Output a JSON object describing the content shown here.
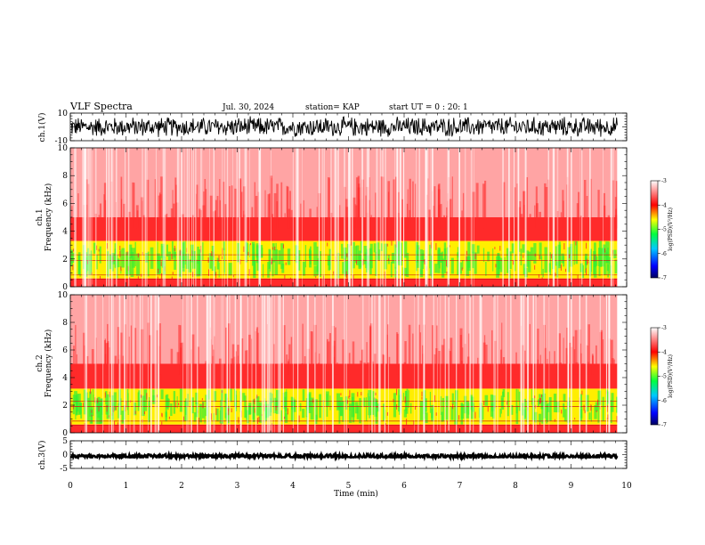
{
  "header": {
    "title": "VLF Spectra",
    "date": "Jul. 30, 2024",
    "station": "station= KAP",
    "start": "start UT =  0 : 20: 1"
  },
  "chart_data": [
    {
      "type": "line",
      "panel": "ch1-waveform",
      "ylabel": "ch.1(V)",
      "ylim": [
        -10,
        10
      ],
      "yticks": [
        "10",
        "-10"
      ],
      "xlim": [
        0,
        10
      ],
      "data_end_min": 9.83,
      "approx_range_V": [
        -8,
        8
      ],
      "color": "#000000"
    },
    {
      "type": "heatmap",
      "panel": "ch1-spectrogram",
      "ylabel": "ch.1\nFrequency (kHz)",
      "ylim": [
        0,
        10
      ],
      "yticks": [
        "0",
        "2",
        "4",
        "6",
        "8",
        "10"
      ],
      "xlim": [
        0,
        10
      ],
      "bands": [
        {
          "from_kHz": 0,
          "to_kHz": 0.6,
          "level": "red"
        },
        {
          "from_kHz": 0.6,
          "to_kHz": 3.3,
          "level": "green-yellow"
        },
        {
          "from_kHz": 3.3,
          "to_kHz": 5,
          "level": "red"
        },
        {
          "from_kHz": 5,
          "to_kHz": 10,
          "level": "light-red"
        }
      ],
      "colorbar": {
        "label": "log(PSD)(V²/Hz)",
        "ticks": [
          "-3",
          "-4",
          "-5",
          "-6",
          "-7"
        ],
        "range": [
          -7,
          -3
        ]
      }
    },
    {
      "type": "heatmap",
      "panel": "ch2-spectrogram",
      "ylabel": "ch.2\nFrequency (kHz)",
      "ylim": [
        0,
        10
      ],
      "yticks": [
        "0",
        "2",
        "4",
        "6",
        "8",
        "10"
      ],
      "xlim": [
        0,
        10
      ],
      "bands": [
        {
          "from_kHz": 0,
          "to_kHz": 0.6,
          "level": "red"
        },
        {
          "from_kHz": 0.6,
          "to_kHz": 3.2,
          "level": "green-yellow"
        },
        {
          "from_kHz": 3.2,
          "to_kHz": 5,
          "level": "red"
        },
        {
          "from_kHz": 5,
          "to_kHz": 10,
          "level": "light-red"
        }
      ],
      "colorbar": {
        "label": "log(PSD)(V²/Hz)",
        "ticks": [
          "-3",
          "-4",
          "-5",
          "-6",
          "-7"
        ],
        "range": [
          -7,
          -3
        ]
      }
    },
    {
      "type": "line",
      "panel": "ch3-waveform",
      "ylabel": "ch.3(V)",
      "ylim": [
        -5,
        5
      ],
      "yticks": [
        "5",
        "0",
        "-5"
      ],
      "xlim": [
        0,
        10
      ],
      "data_end_min": 9.83,
      "approx_range_V": [
        -1.1,
        0.1
      ],
      "color": "#000000"
    }
  ],
  "x_axis": {
    "label": "Time (min)",
    "ticks": [
      "0",
      "1",
      "2",
      "3",
      "4",
      "5",
      "6",
      "7",
      "8",
      "9",
      "10"
    ]
  },
  "colors": {
    "spec_red": "#ff2a2a",
    "spec_green": "#33ee33",
    "spec_yellow": "#ffee00",
    "colorbar_stops": [
      "#000080",
      "#0000ff",
      "#00c8ff",
      "#00ff00",
      "#ffff00",
      "#ff0000",
      "#ffffff"
    ]
  }
}
